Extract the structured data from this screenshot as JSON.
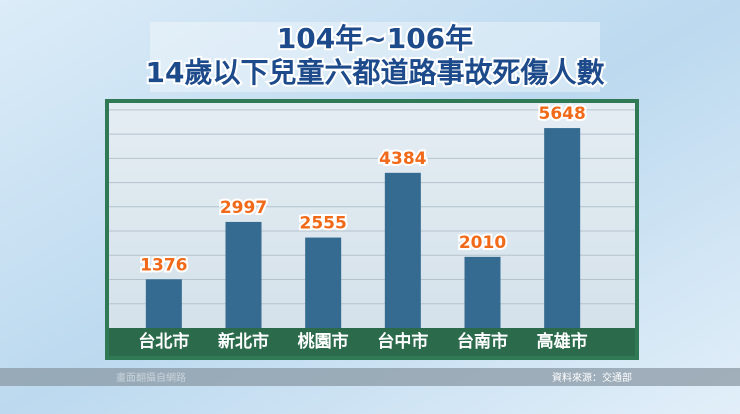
{
  "chart_data": {
    "type": "bar",
    "title": "104年~106年",
    "subtitle": "14歲以下兒童六都道路事故死傷人數",
    "categories": [
      "台北市",
      "新北市",
      "桃園市",
      "台中市",
      "台南市",
      "高雄市"
    ],
    "values": [
      1376,
      2997,
      2555,
      4384,
      2010,
      5648
    ],
    "color": "#356b90",
    "label_color": "#f06a1a",
    "ylim": [
      0,
      6300
    ],
    "grid": true,
    "source": "資料來源：交通部",
    "credit": "畫面翻攝自網路"
  }
}
